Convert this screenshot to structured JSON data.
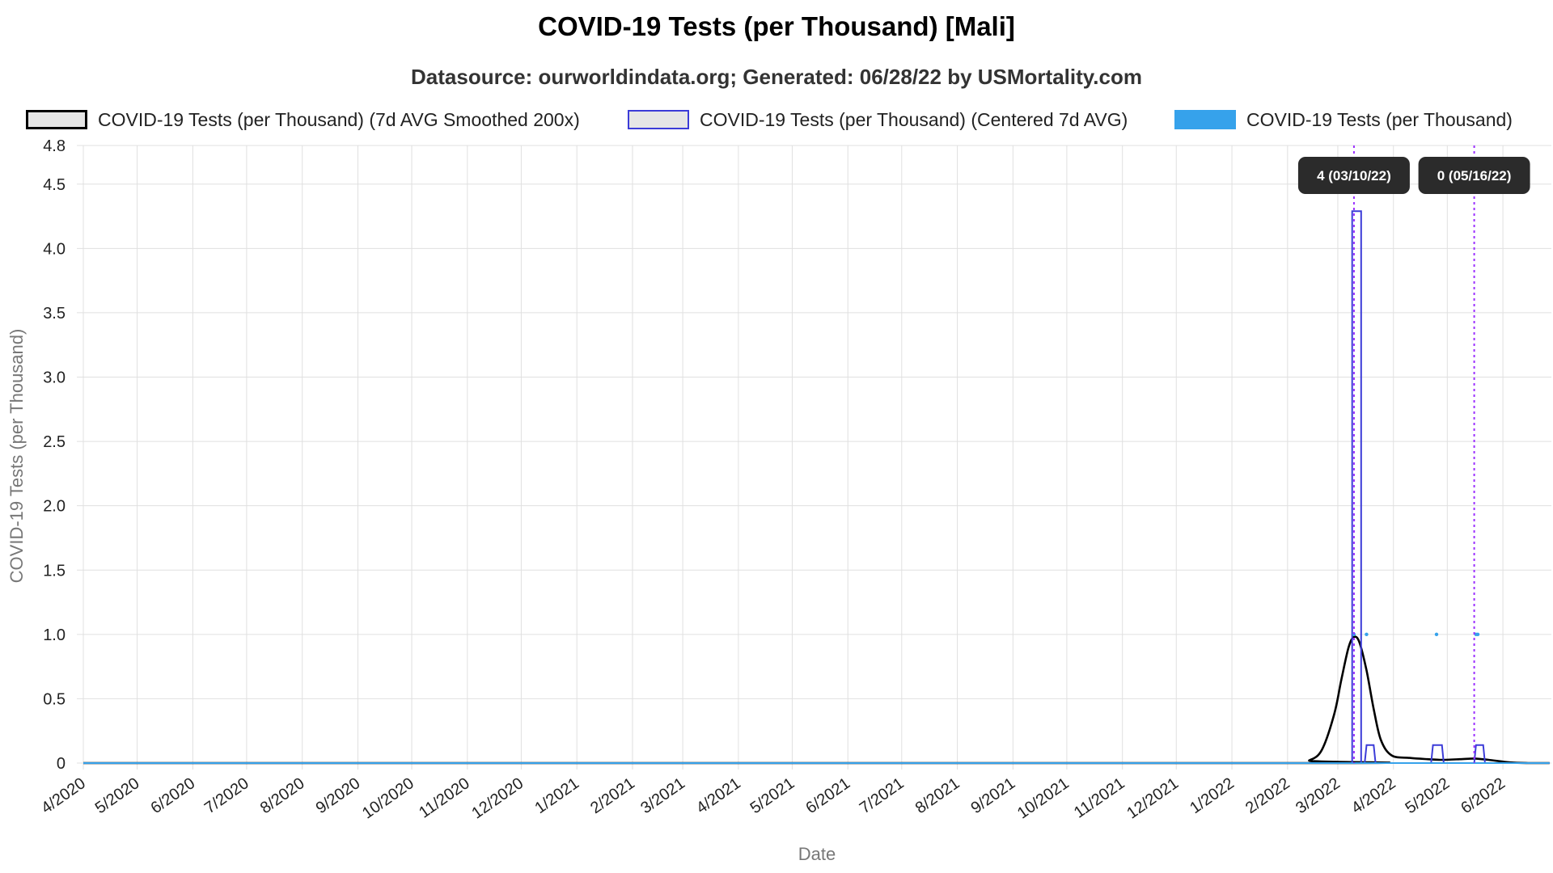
{
  "chart_data": {
    "type": "line",
    "title": "COVID-19 Tests (per Thousand) [Mali]",
    "subtitle": "Datasource: ourworldindata.org; Generated: 06/28/22 by USMortality.com",
    "xlabel": "Date",
    "ylabel": "COVID-19 Tests (per Thousand)",
    "ylim": [
      0,
      4.8
    ],
    "yticks": [
      "0",
      "0.5",
      "1.0",
      "1.5",
      "2.0",
      "2.5",
      "3.0",
      "3.5",
      "4.0",
      "4.5",
      "4.8"
    ],
    "xticks": [
      "4/2020",
      "5/2020",
      "6/2020",
      "7/2020",
      "8/2020",
      "9/2020",
      "10/2020",
      "11/2020",
      "12/2020",
      "1/2021",
      "2/2021",
      "3/2021",
      "4/2021",
      "5/2021",
      "6/2021",
      "7/2021",
      "8/2021",
      "9/2021",
      "10/2021",
      "11/2021",
      "12/2021",
      "1/2022",
      "2/2022",
      "3/2022",
      "4/2022",
      "5/2022",
      "6/2022"
    ],
    "xrange": [
      "2020-04-01",
      "2022-06-28"
    ],
    "grid": true,
    "legend_position": "top",
    "series": [
      {
        "name": "COVID-19 Tests (per Thousand) (7d AVG Smoothed 200x)",
        "kind": "smooth",
        "color": "#000000",
        "points": [
          [
            "2020-04-01",
            0
          ],
          [
            "2022-02-06",
            0
          ],
          [
            "2022-02-13",
            0.02
          ],
          [
            "2022-02-20",
            0.1
          ],
          [
            "2022-02-27",
            0.38
          ],
          [
            "2022-03-03",
            0.65
          ],
          [
            "2022-03-07",
            0.9
          ],
          [
            "2022-03-10",
            0.98
          ],
          [
            "2022-03-13",
            0.94
          ],
          [
            "2022-03-17",
            0.72
          ],
          [
            "2022-03-21",
            0.42
          ],
          [
            "2022-03-25",
            0.18
          ],
          [
            "2022-03-31",
            0.06
          ],
          [
            "2022-04-10",
            0.04
          ],
          [
            "2022-04-20",
            0.03
          ],
          [
            "2022-04-28",
            0.025
          ],
          [
            "2022-05-08",
            0.03
          ],
          [
            "2022-05-16",
            0.035
          ],
          [
            "2022-05-24",
            0.025
          ],
          [
            "2022-06-05",
            0.005
          ],
          [
            "2022-06-15",
            0
          ],
          [
            "2022-06-27",
            0
          ]
        ]
      },
      {
        "name": "COVID-19 Tests (per Thousand) (Centered 7d AVG)",
        "kind": "step",
        "color": "#3c3cd8",
        "points": [
          [
            "2020-04-01",
            0
          ],
          [
            "2022-03-09",
            0
          ],
          [
            "2022-03-09",
            4.29
          ],
          [
            "2022-03-14",
            4.29
          ],
          [
            "2022-03-14",
            0
          ],
          [
            "2022-03-16",
            0
          ],
          [
            "2022-03-17",
            0.14
          ],
          [
            "2022-03-21",
            0.14
          ],
          [
            "2022-03-22",
            0
          ],
          [
            "2022-04-22",
            0
          ],
          [
            "2022-04-23",
            0.14
          ],
          [
            "2022-04-28",
            0.14
          ],
          [
            "2022-04-29",
            0
          ],
          [
            "2022-05-16",
            0
          ],
          [
            "2022-05-17",
            0.14
          ],
          [
            "2022-05-21",
            0.14
          ],
          [
            "2022-05-22",
            0
          ],
          [
            "2022-06-27",
            0
          ]
        ]
      },
      {
        "name": "COVID-19 Tests (per Thousand)",
        "kind": "points",
        "color": "#36a2eb",
        "baseline": [
          "2020-04-01",
          "2022-06-27"
        ],
        "points": [
          [
            "2022-03-10",
            1
          ],
          [
            "2022-03-17",
            1
          ],
          [
            "2022-04-25",
            1
          ],
          [
            "2022-05-17",
            1
          ],
          [
            "2022-05-18",
            1
          ]
        ]
      }
    ],
    "annotations": [
      {
        "date": "2022-03-10",
        "label": "4 (03/10/22)",
        "color": "#9b30ff"
      },
      {
        "date": "2022-05-16",
        "label": "0 (05/16/22)",
        "color": "#9b30ff"
      }
    ]
  }
}
